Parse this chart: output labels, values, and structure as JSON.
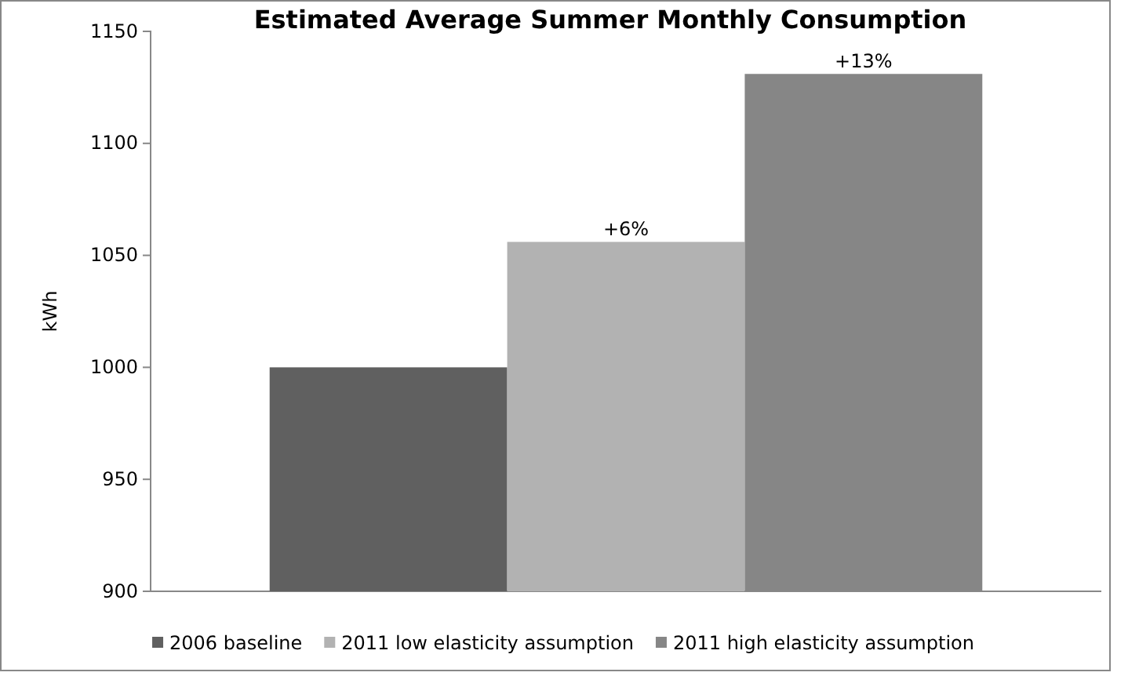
{
  "chart_data": {
    "type": "bar",
    "title": "Estimated Average Summer Monthly Consumption",
    "ylabel": "kWh",
    "categories": [
      null
    ],
    "series": [
      {
        "name": "2006 baseline",
        "color": "#606060",
        "values": [
          1000
        ]
      },
      {
        "name": "2011 low elasticity assumption",
        "color": "#b2b2b2",
        "values": [
          1056
        ]
      },
      {
        "name": "2011 high elasticity assumption",
        "color": "#868686",
        "values": [
          1131
        ]
      }
    ],
    "annotations": [
      {
        "text": "+6%",
        "y": 1056
      },
      {
        "text": "+13%",
        "y": 1131
      }
    ],
    "ylim": [
      900,
      1150
    ],
    "yticks": [
      900,
      950,
      1000,
      1050,
      1100,
      1150
    ],
    "grid": false,
    "legend": "bottom"
  }
}
